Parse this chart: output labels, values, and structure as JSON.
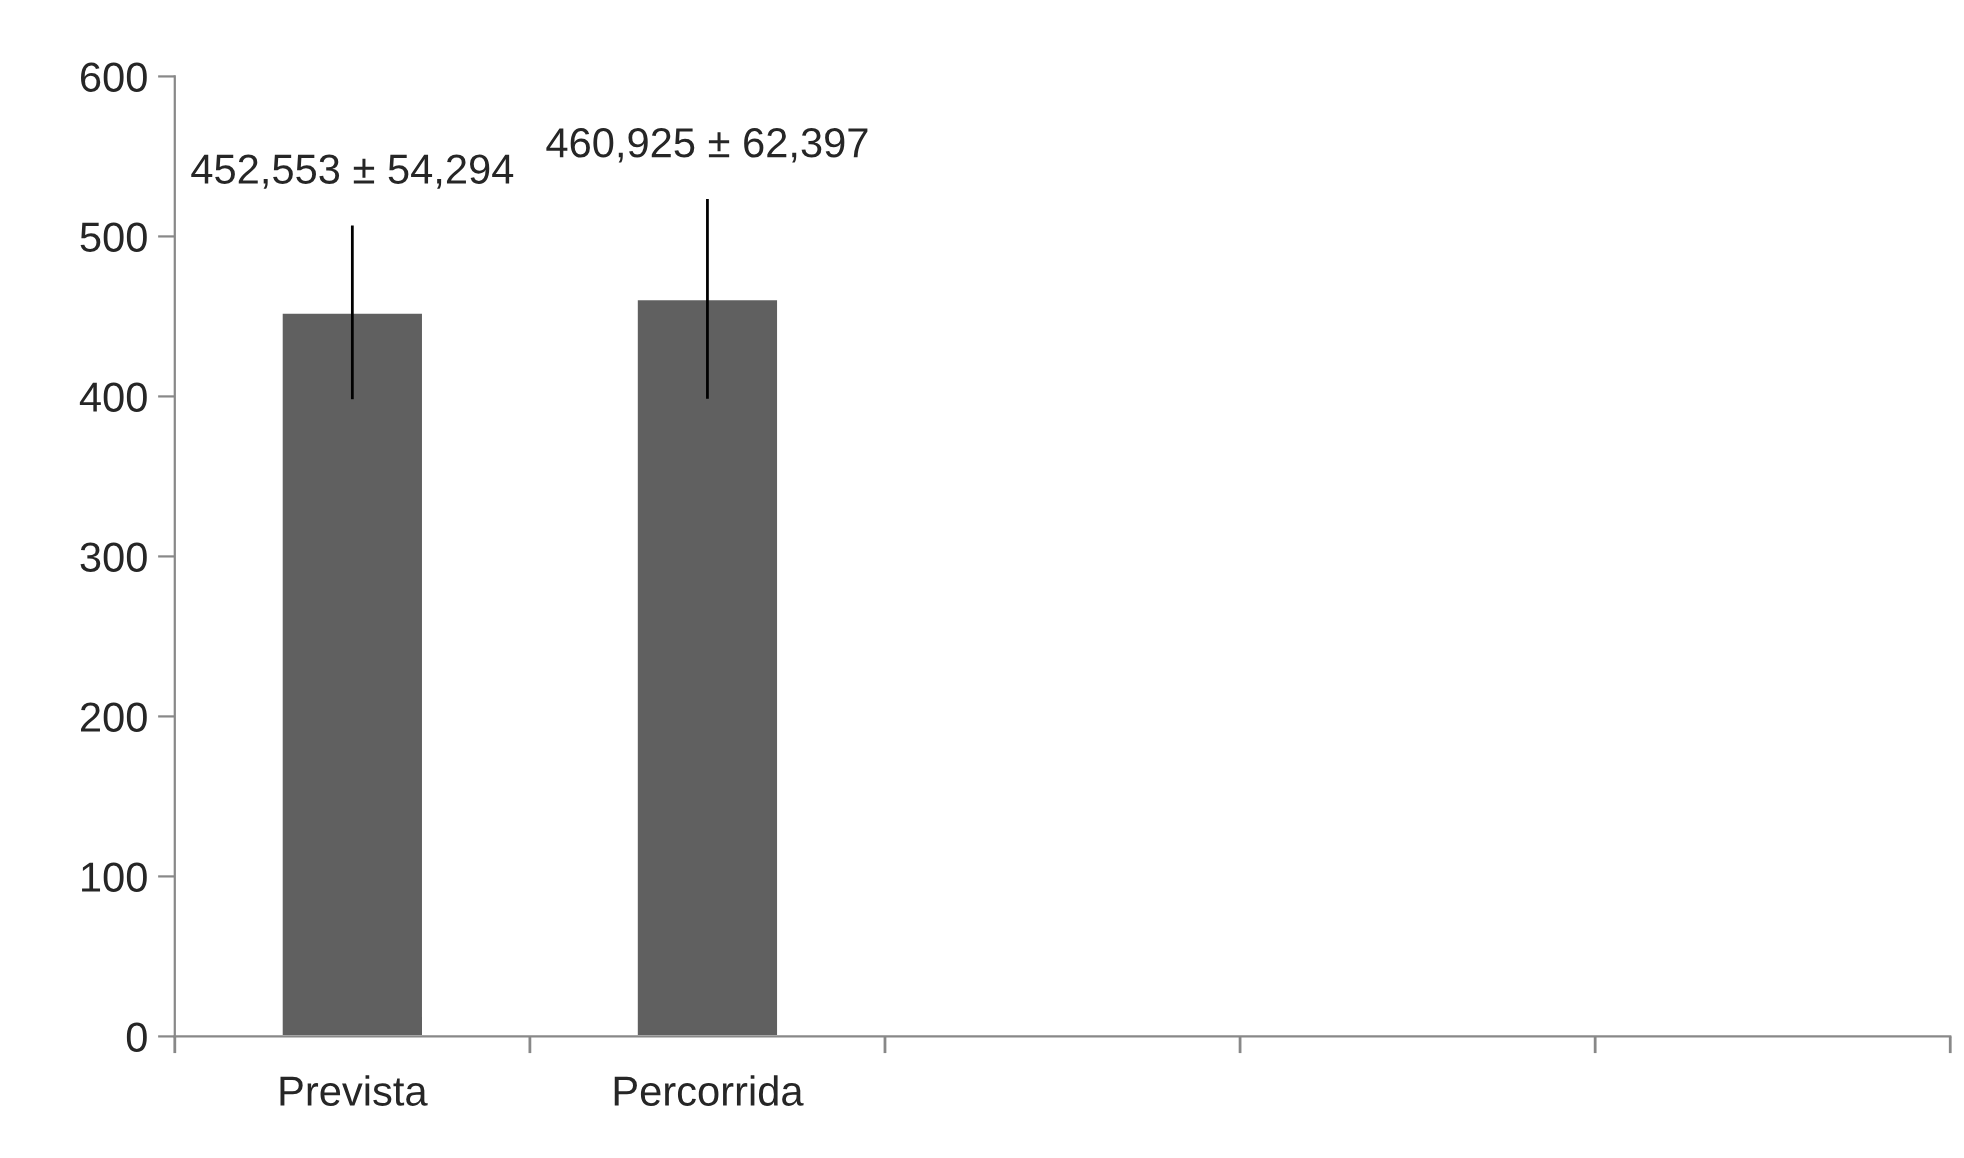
{
  "chart_data": {
    "type": "bar",
    "categories": [
      "Prevista",
      "Percorrida",
      null,
      null,
      null
    ],
    "values": [
      452.553,
      460.925,
      null,
      null,
      null
    ],
    "errors": [
      54.294,
      62.397,
      null,
      null,
      null
    ],
    "annotations": [
      "452,553 ± 54,294",
      "460,925 ± 62,397"
    ],
    "color": "#606060",
    "ylim": [
      0,
      600
    ],
    "yticks": [
      0,
      100,
      200,
      300,
      400,
      500,
      600
    ],
    "grid": false,
    "legend": false
  }
}
